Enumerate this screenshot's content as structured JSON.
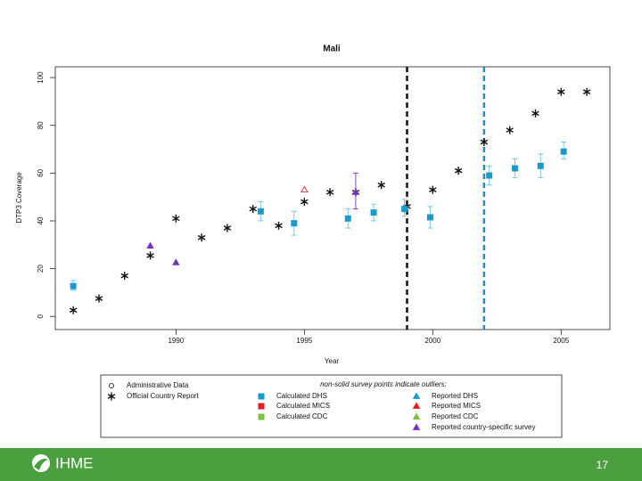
{
  "chart_data": {
    "type": "scatter",
    "title": "Mali",
    "x_label": "Year",
    "y_label": "DTP3 Coverage",
    "xlim": [
      1985.3,
      2006.9
    ],
    "ylim": [
      -5.5,
      104.5
    ],
    "xticks": [
      1990,
      1995,
      2000,
      2005
    ],
    "yticks": [
      0,
      20,
      40,
      60,
      80,
      100
    ],
    "vlines": [
      {
        "x": 1999,
        "color": "#111111"
      },
      {
        "x": 2002,
        "color": "#1a8fc4"
      }
    ],
    "legend_title": "non-solid survey points indicate outliers:",
    "series": [
      {
        "name": "Administrative Data",
        "color": "#333333",
        "marker": "circle",
        "x": [],
        "values": []
      },
      {
        "name": "Official Country Report",
        "color": "#111111",
        "marker": "asterisk",
        "x": [
          1986,
          1987,
          1988,
          1989,
          1990,
          1991,
          1992,
          1993,
          1994,
          1995,
          1996,
          1997,
          1998,
          1999,
          2000,
          2001,
          2002,
          2003,
          2004,
          2005,
          2006
        ],
        "values": [
          2.6,
          7.5,
          17,
          25.5,
          41,
          33,
          37,
          45,
          38,
          48,
          52,
          52,
          55,
          46,
          53,
          61,
          73,
          78,
          85,
          94,
          94
        ]
      },
      {
        "name": "Calculated DHS",
        "color": "#1a9ac9",
        "marker": "square",
        "bar_color": "#6ec3df",
        "x": [
          1986.0,
          1993.3,
          1994.6,
          1996.7,
          1997.7,
          1998.9,
          1999.9,
          2002.2,
          2003.2,
          2004.2,
          2005.1
        ],
        "values": [
          12.7,
          44,
          39,
          41,
          43.5,
          45,
          41.5,
          59,
          62,
          63,
          69
        ],
        "lower": [
          11,
          40,
          34,
          37,
          40,
          42,
          37,
          55,
          58,
          58,
          66
        ],
        "upper": [
          15,
          48,
          44,
          45,
          47,
          49,
          46,
          63,
          66,
          68,
          73
        ]
      },
      {
        "name": "Calculated MICS",
        "color": "#e41a1c",
        "marker": "square",
        "x": [],
        "values": []
      },
      {
        "name": "Calculated CDC",
        "color": "#7fbf3f",
        "marker": "square",
        "x": [],
        "values": []
      },
      {
        "name": "Reported DHS",
        "color": "#1a9ac9",
        "marker": "triangle",
        "x": [],
        "values": []
      },
      {
        "name": "Reported MICS",
        "color": "#e41a1c",
        "marker": "triangle",
        "x": [
          1995
        ],
        "values": [
          53
        ],
        "outlier": [
          true
        ]
      },
      {
        "name": "Reported CDC",
        "color": "#7fbf3f",
        "marker": "triangle",
        "x": [],
        "values": []
      },
      {
        "name": "Reported country-specific survey",
        "color": "#7b2fbf",
        "marker": "triangle",
        "x": [
          1989,
          1990,
          1997
        ],
        "values": [
          29.5,
          22.5,
          52
        ],
        "lower": [
          null,
          null,
          45
        ],
        "upper": [
          null,
          null,
          60
        ]
      }
    ]
  },
  "footer": {
    "logo": "IHME",
    "page": "17"
  }
}
